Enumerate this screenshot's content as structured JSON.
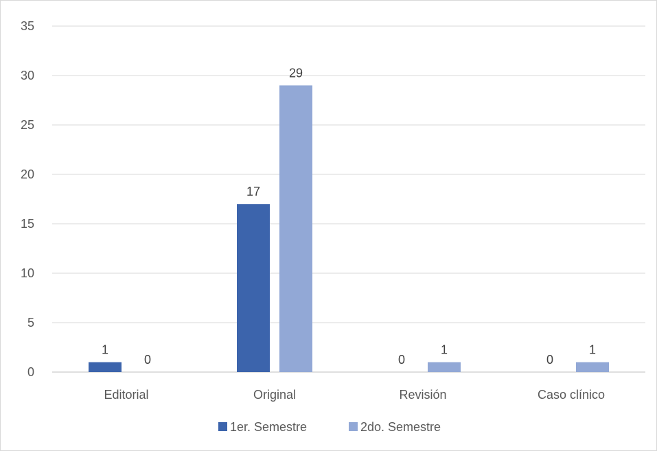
{
  "chart_data": {
    "type": "bar",
    "title": "",
    "xlabel": "",
    "ylabel": "",
    "categories": [
      "Editorial",
      "Original",
      "Revisión",
      "Caso clínico"
    ],
    "series": [
      {
        "name": "1er. Semestre",
        "values": [
          1,
          17,
          0,
          0
        ],
        "color": "#3c64ac"
      },
      {
        "name": "2do. Semestre",
        "values": [
          0,
          29,
          1,
          1
        ],
        "color": "#92a8d6"
      }
    ],
    "ylim": [
      0,
      35
    ],
    "yticks": [
      0,
      5,
      10,
      15,
      20,
      25,
      30,
      35
    ],
    "grid": true,
    "legend": "bottom"
  }
}
